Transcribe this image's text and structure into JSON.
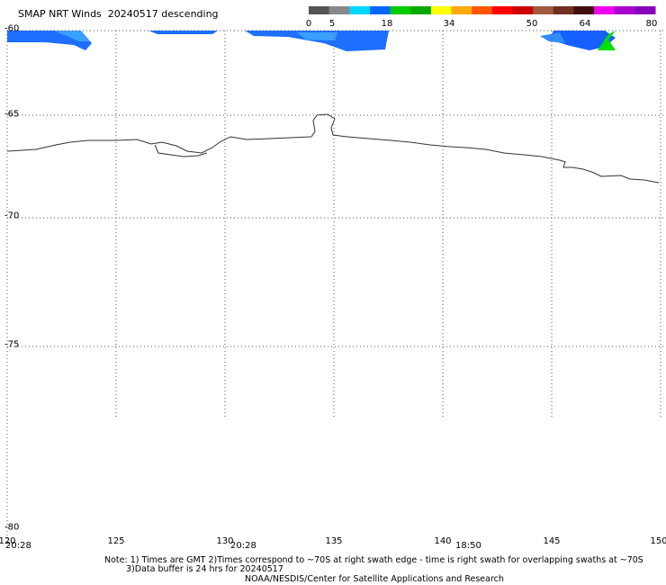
{
  "title": "SMAP NRT Winds  20240517 descending",
  "color_scale": {
    "segments": [
      {
        "color": "#555555"
      },
      {
        "color": "#888888"
      },
      {
        "color": "#00d8ff"
      },
      {
        "color": "#0066ff"
      },
      {
        "color": "#00cc00"
      },
      {
        "color": "#00aa00"
      },
      {
        "color": "#ffff00"
      },
      {
        "color": "#ffaa00"
      },
      {
        "color": "#ff5500"
      },
      {
        "color": "#ff0000"
      },
      {
        "color": "#cc0000"
      },
      {
        "color": "#a05a3c"
      },
      {
        "color": "#703020"
      },
      {
        "color": "#401010"
      },
      {
        "color": "#ee00ee"
      },
      {
        "color": "#aa00cc"
      },
      {
        "color": "#8800bb"
      }
    ],
    "labels": [
      "0",
      "5",
      "18",
      "34",
      "50",
      "64",
      "80"
    ]
  },
  "lat_labels": [
    "-60",
    "-65",
    "-70",
    "-75",
    "-80"
  ],
  "lon_labels": [
    "120",
    "125",
    "130",
    "135",
    "140",
    "145",
    "150"
  ],
  "time_labels": [
    "20:28",
    "20:28",
    "18:50"
  ],
  "notes": {
    "line1": "Note: 1) Times are GMT 2)Times correspond to ~70S at right swath edge - time is right swath for overlapping swaths at ~70S",
    "line2": "3)Data buffer is 24 hrs for 20240517",
    "line3": "NOAA/NESDIS/Center for Satellite Applications and Research"
  },
  "legend_colors": {
    "coast": "#333333",
    "grid": "#555555",
    "swath_blue": "#1a66ff",
    "swath_green": "#00dd00"
  }
}
